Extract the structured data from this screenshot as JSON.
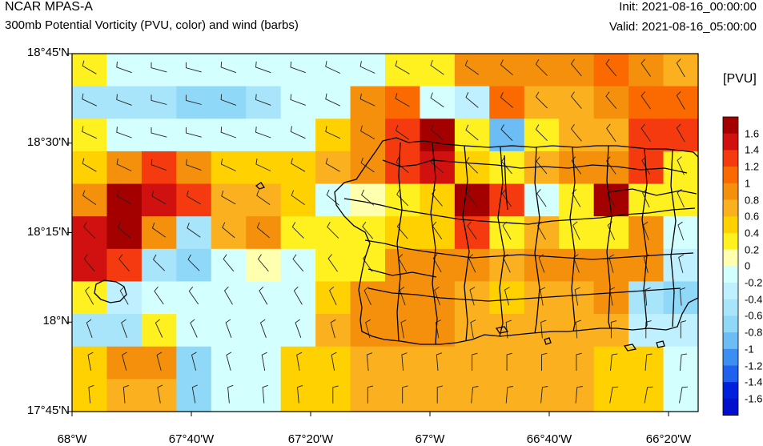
{
  "header": {
    "title": "NCAR MPAS-A",
    "subtitle": "300mb Potential Vorticity (PVU, color) and wind (barbs)",
    "init": "Init: 2021-08-16_00:00:00",
    "valid": "Valid: 2021-08-16_05:00:00"
  },
  "axes": {
    "lat_labels": [
      "18°45'N",
      "18°30'N",
      "18°15'N",
      "18°N",
      "17°45'N"
    ],
    "lon_labels": [
      "68°W",
      "67°40'W",
      "67°20'W",
      "67°W",
      "66°40'W",
      "66°20'W"
    ]
  },
  "colorbar": {
    "units": "[PVU]",
    "labels": [
      "1.6",
      "1.4",
      "1.2",
      "1",
      "0.8",
      "0.6",
      "0.4",
      "0.2",
      "0",
      "-0.2",
      "-0.4",
      "-0.6",
      "-0.8",
      "-1",
      "-1.2",
      "-1.4",
      "-1.6"
    ],
    "colors": [
      "#a50000",
      "#d11010",
      "#f53a0f",
      "#fa6a00",
      "#f5900c",
      "#fbb01f",
      "#ffd100",
      "#fff020",
      "#ffffb0",
      "#d4ffff",
      "#bff0ff",
      "#a8e4fa",
      "#90d8f8",
      "#6cbcf6",
      "#3d8ef2",
      "#2060ee",
      "#0020dd"
    ]
  },
  "chart_data": {
    "type": "heatmap",
    "title": "300mb Potential Vorticity (PVU, color) and wind (barbs)",
    "value_labels": [
      "1.6",
      "1.4",
      "1.2",
      "1",
      "0.8",
      "0.6",
      "0.4",
      "0.2",
      "0",
      "-0.2",
      "-0.4",
      "-0.6",
      "-0.8",
      "-1",
      "-1.2",
      "-1.4",
      "-1.6"
    ],
    "lon_range_deg": [
      -68.0,
      -66.25
    ],
    "lat_range_deg": [
      17.75,
      18.75
    ],
    "grid_colors": [
      [
        "#fff020",
        "#d4ffff",
        "#d4ffff",
        "#d4ffff",
        "#d4ffff",
        "#d4ffff",
        "#d4ffff",
        "#d4ffff",
        "#d4ffff",
        "#fff020",
        "#fff020",
        "#f5900c",
        "#f5900c",
        "#f5900c",
        "#f5900c",
        "#fa6a00",
        "#f5900c",
        "#fbb01f"
      ],
      [
        "#a8e4fa",
        "#a8e4fa",
        "#a8e4fa",
        "#90d8f8",
        "#90d8f8",
        "#a8e4fa",
        "#d4ffff",
        "#d4ffff",
        "#f5900c",
        "#fa6a00",
        "#d4ffff",
        "#bff0ff",
        "#fa6a00",
        "#fbb01f",
        "#fbb01f",
        "#f5900c",
        "#fa6a00",
        "#fa6a00"
      ],
      [
        "#fff020",
        "#d4ffff",
        "#d4ffff",
        "#d4ffff",
        "#d4ffff",
        "#d4ffff",
        "#d4ffff",
        "#ffd100",
        "#f5900c",
        "#f53a0f",
        "#a50000",
        "#fff020",
        "#6cbcf6",
        "#fff020",
        "#fbb01f",
        "#fbb01f",
        "#f53a0f",
        "#f53a0f"
      ],
      [
        "#ffd100",
        "#f5900c",
        "#f53a0f",
        "#f5900c",
        "#ffd100",
        "#ffd100",
        "#ffd100",
        "#fbb01f",
        "#f5900c",
        "#f53a0f",
        "#d11010",
        "#ffd100",
        "#fff020",
        "#fbb01f",
        "#f5900c",
        "#f5900c",
        "#f53a0f",
        "#fff020"
      ],
      [
        "#f5900c",
        "#a50000",
        "#d11010",
        "#f53a0f",
        "#fbb01f",
        "#fbb01f",
        "#ffd100",
        "#d4ffff",
        "#ffffb0",
        "#fff020",
        "#ffd100",
        "#a50000",
        "#f53a0f",
        "#d4ffff",
        "#fff020",
        "#a50000",
        "#fff020",
        "#fff020"
      ],
      [
        "#d11010",
        "#a50000",
        "#f5900c",
        "#a8e4fa",
        "#fbb01f",
        "#f5900c",
        "#fff020",
        "#fff020",
        "#fff020",
        "#ffd100",
        "#ffd100",
        "#f53a0f",
        "#fff020",
        "#fbb01f",
        "#fff020",
        "#fff020",
        "#f5900c",
        "#d4ffff"
      ],
      [
        "#d11010",
        "#f53a0f",
        "#a8e4fa",
        "#90d8f8",
        "#d4ffff",
        "#ffffb0",
        "#d4ffff",
        "#fff020",
        "#fff020",
        "#f5900c",
        "#f5900c",
        "#f5900c",
        "#fbb01f",
        "#f5900c",
        "#f5900c",
        "#f5900c",
        "#f5900c",
        "#bff0ff"
      ],
      [
        "#fff020",
        "#bff0ff",
        "#d4ffff",
        "#d4ffff",
        "#d4ffff",
        "#d4ffff",
        "#d4ffff",
        "#ffd100",
        "#f5900c",
        "#f5900c",
        "#f5900c",
        "#fbb01f",
        "#ffd100",
        "#fbb01f",
        "#fbb01f",
        "#f5900c",
        "#a8e4fa",
        "#90d8f8"
      ],
      [
        "#a8e4fa",
        "#a8e4fa",
        "#fff020",
        "#d4ffff",
        "#d4ffff",
        "#d4ffff",
        "#d4ffff",
        "#fbb01f",
        "#f5900c",
        "#f5900c",
        "#f5900c",
        "#fbb01f",
        "#fbb01f",
        "#fbb01f",
        "#fbb01f",
        "#fbb01f",
        "#bff0ff",
        "#bff0ff"
      ],
      [
        "#ffd100",
        "#f5900c",
        "#f5900c",
        "#90d8f8",
        "#d4ffff",
        "#d4ffff",
        "#ffd100",
        "#ffd100",
        "#fbb01f",
        "#fbb01f",
        "#fbb01f",
        "#fbb01f",
        "#fbb01f",
        "#fbb01f",
        "#fbb01f",
        "#ffd100",
        "#ffd100",
        "#d4ffff"
      ],
      [
        "#ffd100",
        "#fbb01f",
        "#fbb01f",
        "#90d8f8",
        "#d4ffff",
        "#d4ffff",
        "#ffd100",
        "#ffd100",
        "#fbb01f",
        "#fbb01f",
        "#fbb01f",
        "#fbb01f",
        "#fbb01f",
        "#fbb01f",
        "#fbb01f",
        "#ffd100",
        "#ffd100",
        "#d4ffff"
      ]
    ],
    "wind_dir_deg": [
      [
        300,
        290,
        285,
        285,
        290,
        290,
        290,
        295,
        295,
        300,
        305,
        305,
        310,
        315,
        320,
        320,
        325,
        330
      ],
      [
        295,
        290,
        285,
        285,
        290,
        290,
        290,
        295,
        295,
        300,
        305,
        310,
        310,
        315,
        320,
        320,
        325,
        330
      ],
      [
        295,
        290,
        285,
        285,
        290,
        290,
        295,
        295,
        300,
        305,
        310,
        310,
        315,
        315,
        320,
        325,
        325,
        330
      ],
      [
        300,
        295,
        290,
        290,
        295,
        295,
        300,
        300,
        305,
        310,
        310,
        315,
        320,
        320,
        325,
        325,
        330,
        335
      ],
      [
        305,
        300,
        300,
        300,
        300,
        305,
        305,
        310,
        310,
        315,
        320,
        320,
        325,
        325,
        330,
        330,
        335,
        335
      ],
      [
        315,
        310,
        305,
        305,
        310,
        310,
        315,
        315,
        320,
        320,
        325,
        325,
        330,
        330,
        335,
        335,
        340,
        340
      ],
      [
        320,
        320,
        315,
        315,
        320,
        320,
        320,
        325,
        325,
        330,
        330,
        335,
        335,
        340,
        340,
        345,
        345,
        345
      ],
      [
        330,
        330,
        325,
        325,
        330,
        330,
        330,
        335,
        335,
        340,
        340,
        345,
        345,
        350,
        350,
        350,
        355,
        355
      ],
      [
        340,
        340,
        335,
        335,
        340,
        340,
        340,
        345,
        345,
        350,
        350,
        350,
        355,
        355,
        355,
        0,
        0,
        0
      ],
      [
        350,
        345,
        345,
        345,
        345,
        350,
        350,
        350,
        355,
        355,
        355,
        0,
        0,
        0,
        0,
        5,
        5,
        5
      ],
      [
        355,
        355,
        350,
        350,
        355,
        355,
        355,
        0,
        0,
        0,
        0,
        5,
        5,
        5,
        5,
        10,
        10,
        10
      ]
    ]
  }
}
